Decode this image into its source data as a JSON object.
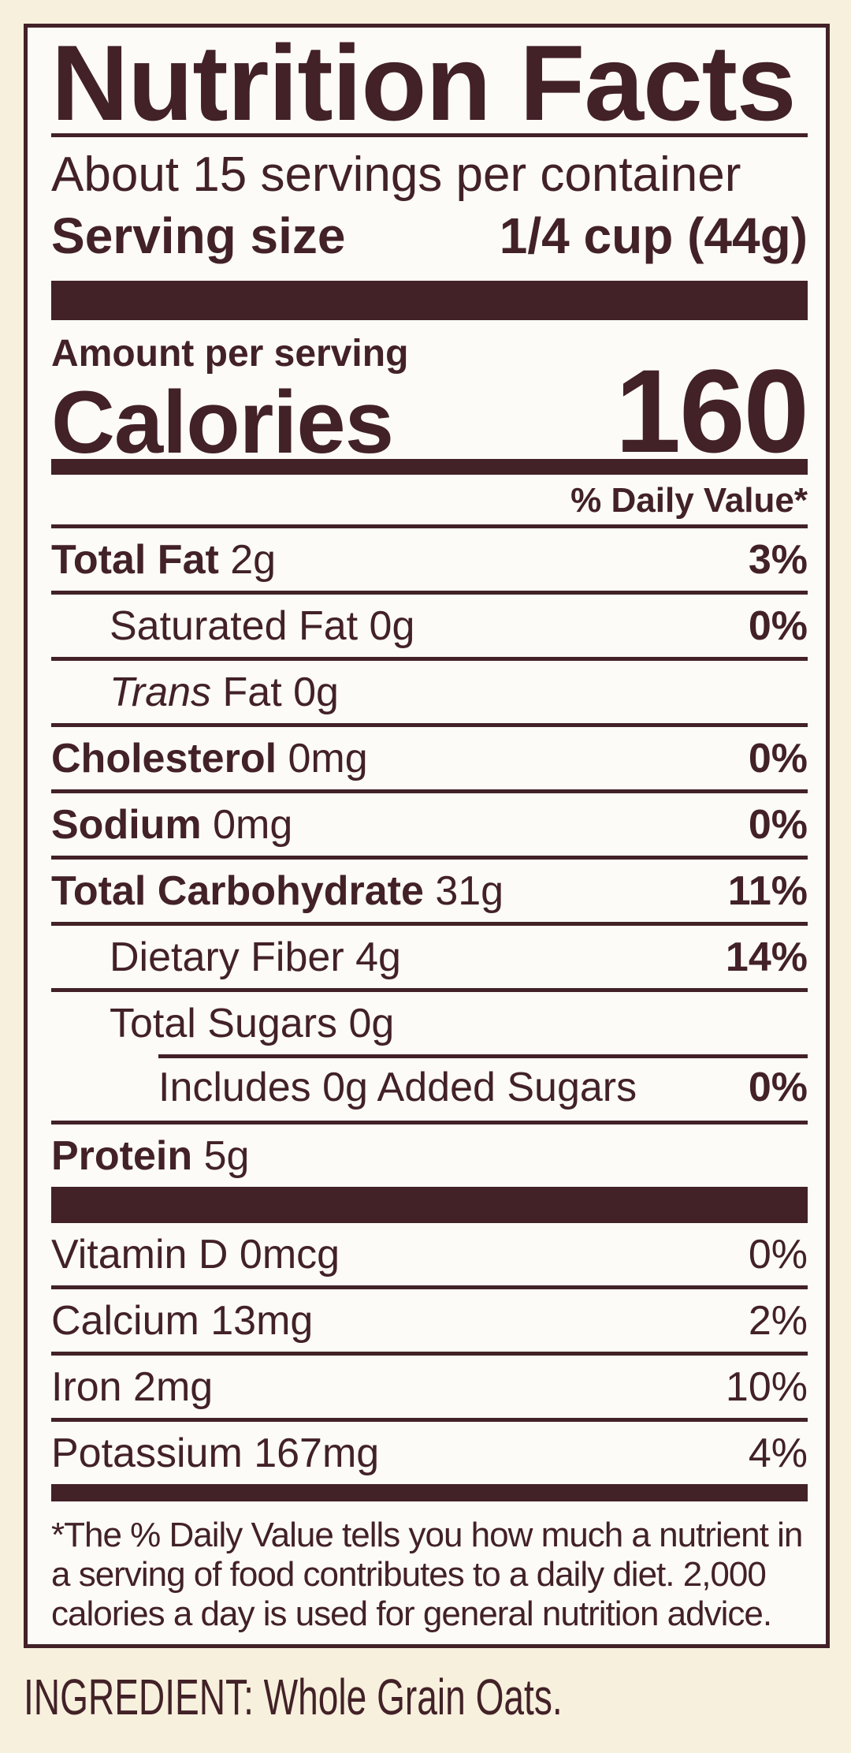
{
  "colors": {
    "ink": "#422127",
    "panel_bg": "#fcfbf7",
    "page_bg": "#f7f0dd"
  },
  "label": {
    "title": "Nutrition Facts",
    "servings_per_container": "About 15 servings per container",
    "serving_size": {
      "label": "Serving size",
      "value": "1/4 cup (44g)"
    },
    "amount_per_serving": "Amount per serving",
    "calories": {
      "label": "Calories",
      "value": "160"
    },
    "daily_value_header": "% Daily Value*",
    "nutrient_rows": [
      {
        "bold": "Total Fat",
        "text": "2g",
        "dv": "3%",
        "indent": 0
      },
      {
        "text": "Saturated Fat 0g",
        "dv": "0%",
        "indent": 1
      },
      {
        "italic": "Trans",
        "text": "Fat 0g",
        "dv": "",
        "indent": 1
      },
      {
        "bold": "Cholesterol",
        "text": "0mg",
        "dv": "0%",
        "indent": 0
      },
      {
        "bold": "Sodium",
        "text": "0mg",
        "dv": "0%",
        "indent": 0
      },
      {
        "bold": "Total Carbohydrate",
        "text": "31g",
        "dv": "11%",
        "indent": 0
      },
      {
        "text": "Dietary Fiber 4g",
        "dv": "14%",
        "indent": 1
      },
      {
        "text": "Total Sugars 0g",
        "dv": "",
        "indent": 1
      },
      {
        "text": "Includes 0g Added Sugars",
        "dv": "0%",
        "indent": 2,
        "sep_indent": true
      },
      {
        "bold": "Protein",
        "text": "5g",
        "dv": "",
        "indent": 0
      }
    ],
    "micronutrient_rows": [
      {
        "text": "Vitamin D 0mcg",
        "dv": "0%"
      },
      {
        "text": "Calcium 13mg",
        "dv": "2%"
      },
      {
        "text": "Iron 2mg",
        "dv": "10%"
      },
      {
        "text": "Potassium 167mg",
        "dv": "4%"
      }
    ],
    "footnote_lines": [
      "*The % Daily Value tells you how much a nutrient in",
      "a serving of food contributes to a daily diet. 2,000",
      "calories a day is used for general nutrition advice."
    ]
  },
  "ingredient_line": "INGREDIENT: Whole Grain Oats."
}
